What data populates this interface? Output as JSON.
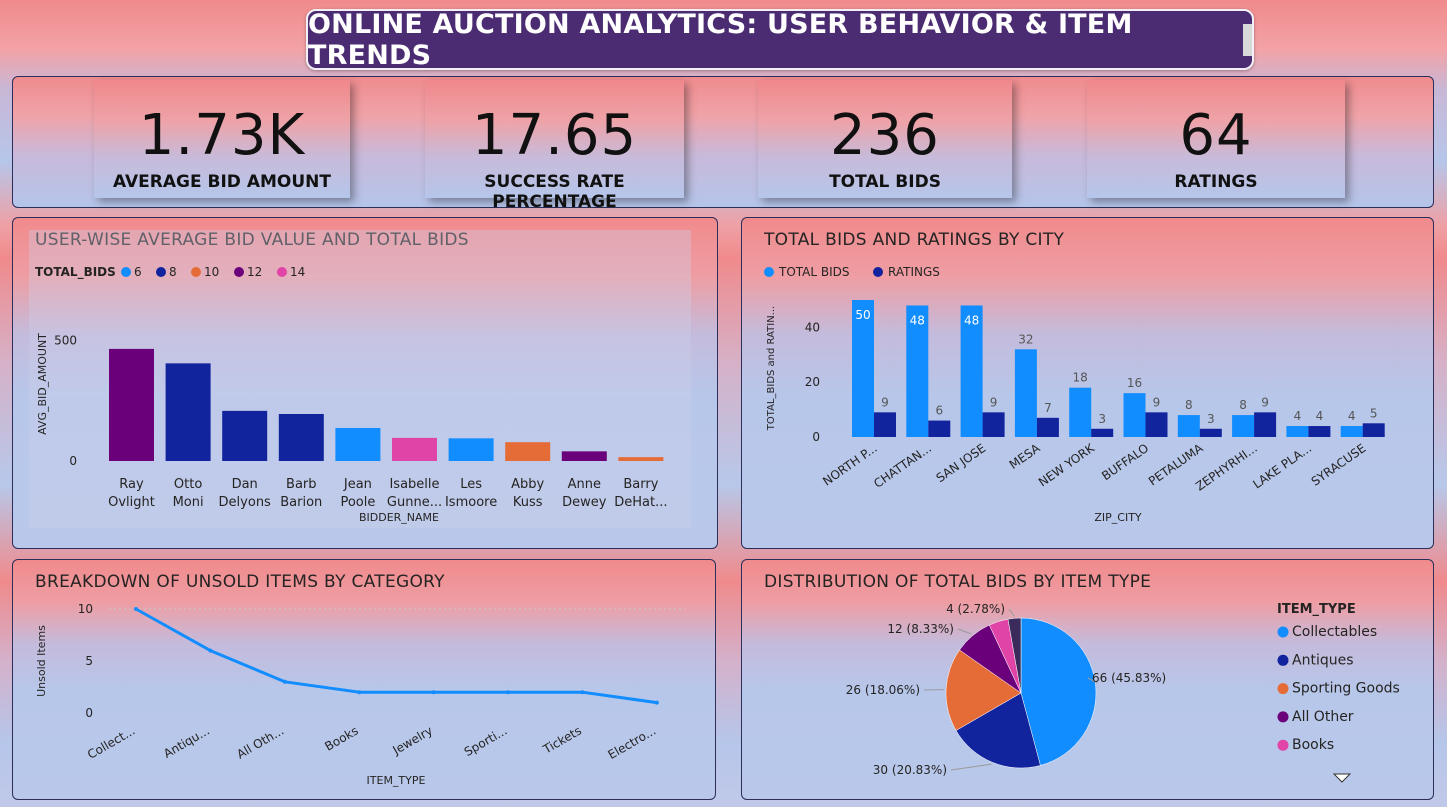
{
  "title": "ONLINE AUCTION ANALYTICS: USER BEHAVIOR & ITEM TRENDS",
  "kpis": [
    {
      "value": "1.73K",
      "label": "AVERAGE BID AMOUNT"
    },
    {
      "value": "17.65",
      "label": "SUCCESS RATE PERCENTAGE"
    },
    {
      "value": "236",
      "label": "TOTAL BIDS"
    },
    {
      "value": "64",
      "label": "RATINGS"
    }
  ],
  "chart_data": [
    {
      "type": "bar",
      "title": "USER-WISE AVERAGE BID VALUE AND TOTAL BIDS",
      "xlabel": "BIDDER_NAME",
      "ylabel": "AVG_BID_AMOUNT",
      "ylim": [
        0,
        560
      ],
      "yticks": [
        "500",
        "0"
      ],
      "legend_title": "TOTAL_BIDS",
      "legend": [
        {
          "name": "6",
          "color": "#118dff"
        },
        {
          "name": "8",
          "color": "#12239e"
        },
        {
          "name": "10",
          "color": "#e66c37"
        },
        {
          "name": "12",
          "color": "#6b007b"
        },
        {
          "name": "14",
          "color": "#e044a7"
        }
      ],
      "categories": [
        [
          "Ray",
          "Ovlight"
        ],
        [
          "Otto",
          "Moni"
        ],
        [
          "Dan",
          "Delyons"
        ],
        [
          "Barb",
          "Barion"
        ],
        [
          "Jean",
          "Poole"
        ],
        [
          "Isabelle",
          "Gunne..."
        ],
        [
          "Les",
          "Ismoore"
        ],
        [
          "Abby",
          "Kuss"
        ],
        [
          "Anne",
          "Dewey"
        ],
        [
          "Barry",
          "DeHat..."
        ]
      ],
      "values": [
        465,
        405,
        208,
        195,
        137,
        96,
        94,
        78,
        40,
        16
      ],
      "colors": [
        "#6b007b",
        "#12239e",
        "#12239e",
        "#12239e",
        "#118dff",
        "#e044a7",
        "#118dff",
        "#e66c37",
        "#6b007b",
        "#e66c37"
      ]
    },
    {
      "type": "bar",
      "title": "TOTAL BIDS AND RATINGS BY CITY",
      "xlabel": "ZIP_CITY",
      "ylabel": "TOTAL_BIDS and RATIN...",
      "ylim": [
        0,
        52
      ],
      "yticks": [
        "0",
        "20",
        "40"
      ],
      "categories": [
        "NORTH P...",
        "CHATTAN...",
        "SAN JOSE",
        "MESA",
        "NEW YORK",
        "BUFFALO",
        "PETALUMA",
        "ZEPHYRHI...",
        "LAKE PLA...",
        "SYRACUSE"
      ],
      "series": [
        {
          "name": "TOTAL BIDS",
          "color": "#118dff",
          "values": [
            50,
            48,
            48,
            32,
            18,
            16,
            8,
            8,
            4,
            4
          ]
        },
        {
          "name": "RATINGS",
          "color": "#12239e",
          "values": [
            9,
            6,
            9,
            7,
            3,
            9,
            3,
            9,
            4,
            5
          ]
        }
      ]
    },
    {
      "type": "line",
      "title": "BREAKDOWN OF UNSOLD ITEMS BY CATEGORY",
      "xlabel": "ITEM_TYPE",
      "ylabel": "Unsold Items",
      "ylim": [
        0,
        10
      ],
      "yticks": [
        "0",
        "5",
        "10"
      ],
      "categories": [
        "Collect...",
        "Antiqu...",
        "All Oth...",
        "Books",
        "Jewelry",
        "Sporti...",
        "Tickets",
        "Electro..."
      ],
      "values": [
        10,
        6,
        3,
        2,
        2,
        2,
        2,
        1
      ],
      "color": "#118dff"
    },
    {
      "type": "pie",
      "title": "DISTRIBUTION OF TOTAL BIDS BY ITEM TYPE",
      "legend_title": "ITEM_TYPE",
      "slices": [
        {
          "name": "Collectables",
          "value": 66,
          "label": "66 (45.83%)",
          "color": "#118dff"
        },
        {
          "name": "Antiques",
          "value": 30,
          "label": "30 (20.83%)",
          "color": "#12239e"
        },
        {
          "name": "Sporting Goods",
          "value": 26,
          "label": "26 (18.06%)",
          "color": "#e66c37"
        },
        {
          "name": "All Other",
          "value": 12,
          "label": "12 (8.33%)",
          "color": "#6b007b"
        },
        {
          "name": "Books",
          "value": 6,
          "label": "",
          "color": "#e044a7"
        },
        {
          "name": "",
          "value": 4,
          "label": "4 (2.78%)",
          "color": "#3b2a5c"
        }
      ]
    }
  ]
}
